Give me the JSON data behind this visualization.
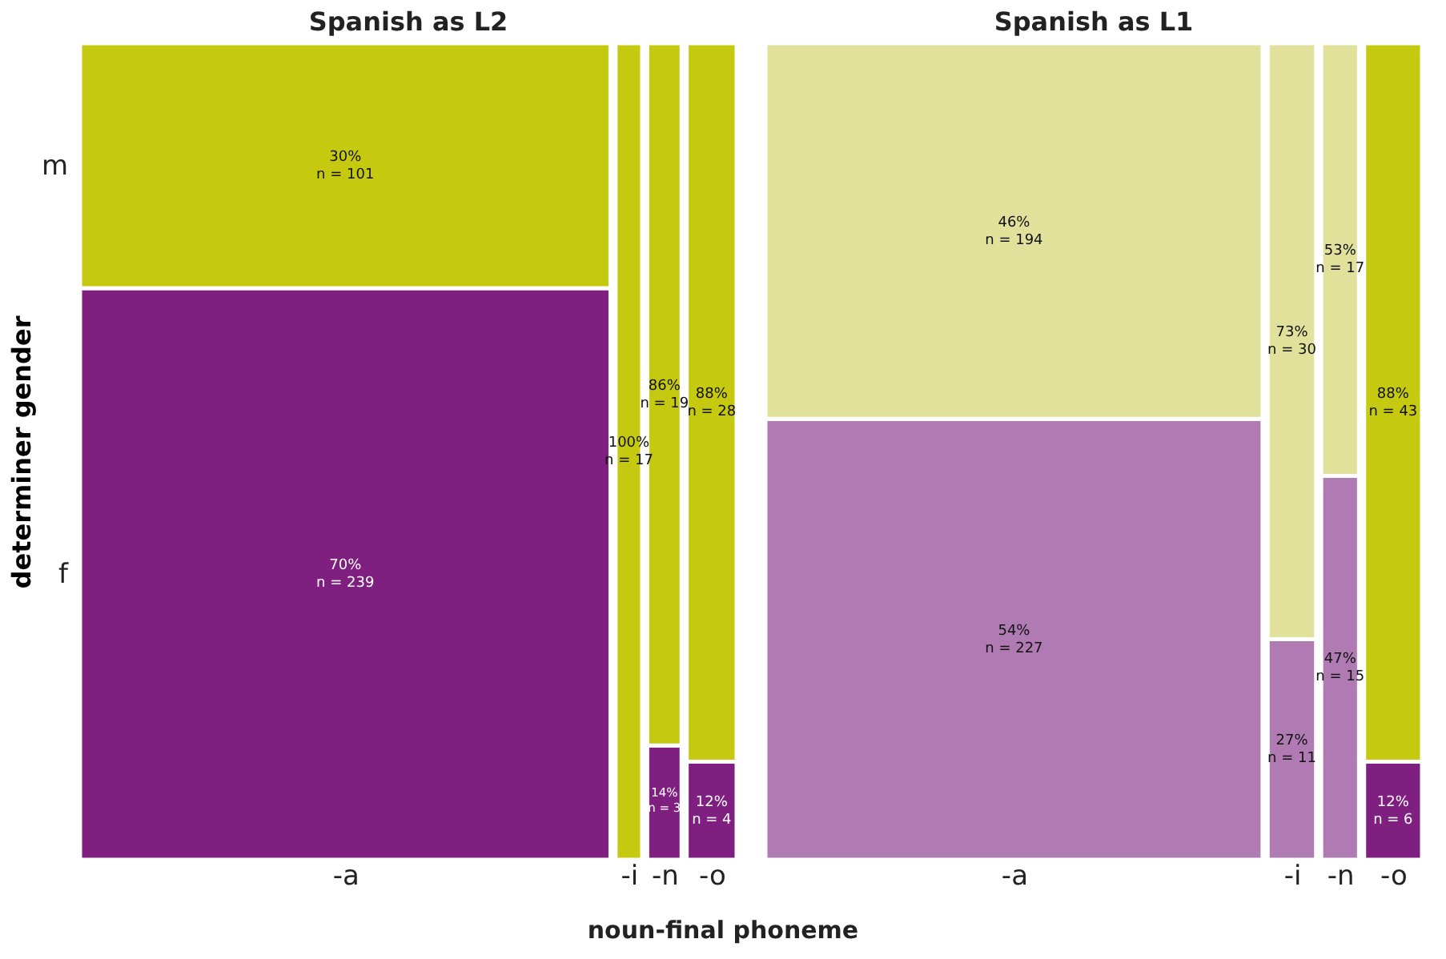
{
  "chart_data": [
    {
      "type": "other",
      "title": "Spanish as L2",
      "ylabel": "determiner gender",
      "xlabel": "noun-final phoneme",
      "categories": [
        "-a",
        "-i",
        "-n",
        "-o"
      ],
      "series": [
        {
          "name": "f",
          "colors": [
            "#7f1f7f",
            null,
            "#7f1f7f",
            "#7f1f7f"
          ],
          "values": [
            70,
            null,
            14,
            12
          ],
          "value_labels": [
            "70%\nn = 239",
            null,
            "14%\nn = 3",
            "12%\nn = 4"
          ]
        },
        {
          "name": "m",
          "colors": [
            "#c5c90f",
            "#c5c90f",
            "#c5c90f",
            "#c5c90f"
          ],
          "values": [
            30,
            100,
            86,
            88
          ],
          "value_labels": [
            "30%\nn = 101",
            "100%\nn = 17",
            "86%\nn = 19",
            "88%\nn = 28"
          ]
        }
      ]
    },
    {
      "type": "other",
      "title": "Spanish as L1",
      "categories": [
        "-a",
        "-i",
        "-n",
        "-o"
      ],
      "series": [
        {
          "colors": [
            "#b07bb3",
            "#b07bb3",
            "#b07bb3",
            "#7f1f7f"
          ],
          "values": [
            54,
            27,
            47,
            12
          ],
          "value_labels": [
            "54%\nn = 227",
            "27%\nn = 11",
            "47%\nn = 15",
            "12%\nn = 6"
          ]
        },
        {
          "colors": [
            "#e1e19c",
            "#e1e19c",
            "#e1e19c",
            "#c5c90f"
          ],
          "values": [
            46,
            73,
            53,
            88
          ],
          "value_labels": [
            "46%\nn = 194",
            "73%\nn = 30",
            "53%\nn = 17",
            "88%\nn = 43"
          ]
        }
      ]
    }
  ]
}
